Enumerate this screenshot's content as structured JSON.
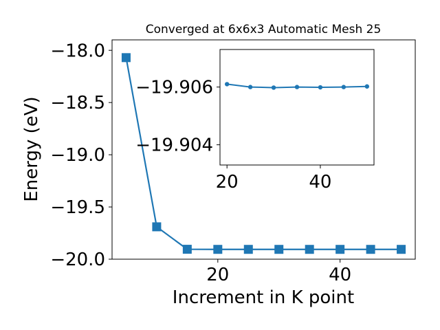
{
  "colors": {
    "series": "#1f77b4",
    "axes": "#000000",
    "background": "#ffffff"
  },
  "chart_data": [
    {
      "id": "main",
      "type": "line",
      "title": "Converged at 6x6x3 Automatic Mesh 25",
      "xlabel": "Increment in K point",
      "ylabel": "Energy (eV)",
      "marker": "square",
      "grid": false,
      "xlim": [
        2.7,
        52.3
      ],
      "ylim": [
        -20.0,
        -17.9
      ],
      "xticks": [
        20,
        40
      ],
      "xtick_labels": [
        "20",
        "40"
      ],
      "yticks": [
        -18.0,
        -18.5,
        -19.0,
        -19.5,
        -20.0
      ],
      "ytick_labels": [
        "−18.0",
        "−18.5",
        "−19.0",
        "−19.5",
        "−20.0"
      ],
      "series": [
        {
          "x": [
            5,
            10,
            15,
            20,
            25,
            30,
            35,
            40,
            45,
            50
          ],
          "y": [
            -18.07,
            -19.69,
            -19.905,
            -19.906,
            -19.906,
            -19.906,
            -19.906,
            -19.906,
            -19.906,
            -19.906
          ]
        }
      ]
    },
    {
      "id": "inset",
      "type": "line",
      "title": "",
      "xlabel": "",
      "ylabel": "",
      "marker": "circle",
      "grid": false,
      "xlim": [
        18.5,
        51.5
      ],
      "ylim": [
        -19.9033,
        -19.9073
      ],
      "xticks": [
        20,
        40
      ],
      "xtick_labels": [
        "20",
        "40"
      ],
      "yticks": [
        -19.906,
        -19.904
      ],
      "ytick_labels": [
        "−19.906",
        "−19.904"
      ],
      "series": [
        {
          "x": [
            20,
            25,
            30,
            35,
            40,
            45,
            50
          ],
          "y": [
            -19.9061,
            -19.906,
            -19.90598,
            -19.906,
            -19.90599,
            -19.906,
            -19.90602
          ]
        }
      ]
    }
  ]
}
